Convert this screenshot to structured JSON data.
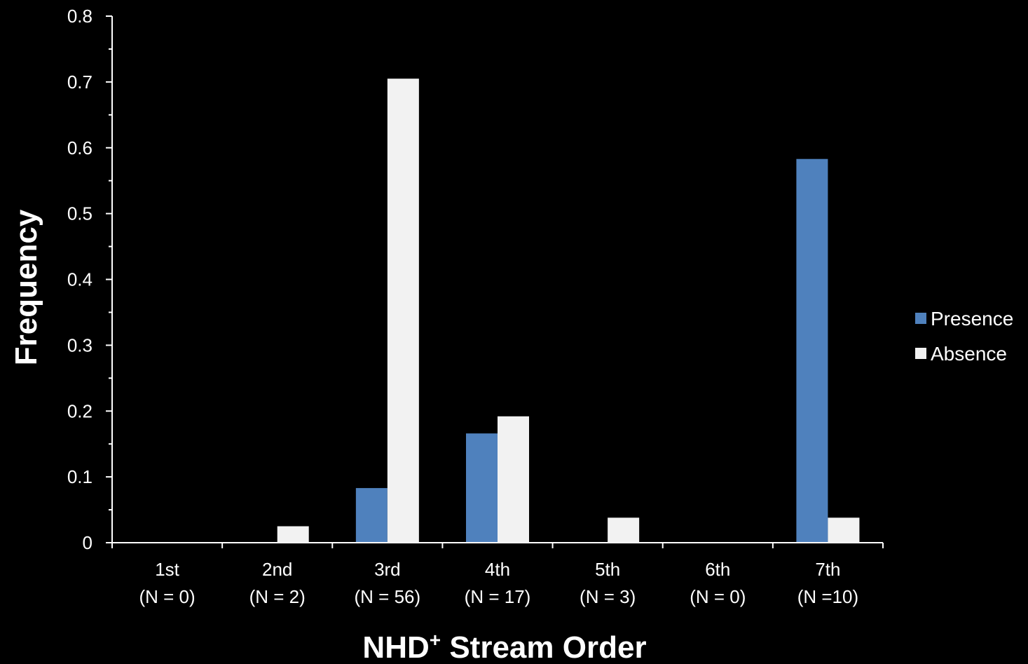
{
  "chart_data": {
    "type": "bar",
    "title": "",
    "xlabel": "NHD",
    "xlabel_superscript": "+",
    "xlabel_rest": " Stream Order",
    "ylabel": "Frequency",
    "categories": [
      "1st",
      "2nd",
      "3rd",
      "4th",
      "5th",
      "6th",
      "7th"
    ],
    "category_sublabels": [
      "(N = 0)",
      "(N = 2)",
      "(N = 56)",
      "(N = 17)",
      "(N = 3)",
      "(N = 0)",
      "(N =10)"
    ],
    "series": [
      {
        "name": "Presence",
        "color": "#4f81bd",
        "values": [
          0,
          0,
          0.083,
          0.166,
          0,
          0,
          0.583
        ]
      },
      {
        "name": "Absence",
        "color": "#f2f2f2",
        "values": [
          0,
          0.025,
          0.705,
          0.192,
          0.038,
          0,
          0.038
        ]
      }
    ],
    "ylim": [
      0,
      0.8
    ],
    "yticks": [
      "0",
      "0.1",
      "0.2",
      "0.3",
      "0.4",
      "0.5",
      "0.6",
      "0.7",
      "0.8"
    ],
    "grid": false,
    "legend_position": "right",
    "background": "#000000",
    "axis_color": "#ffffff"
  }
}
